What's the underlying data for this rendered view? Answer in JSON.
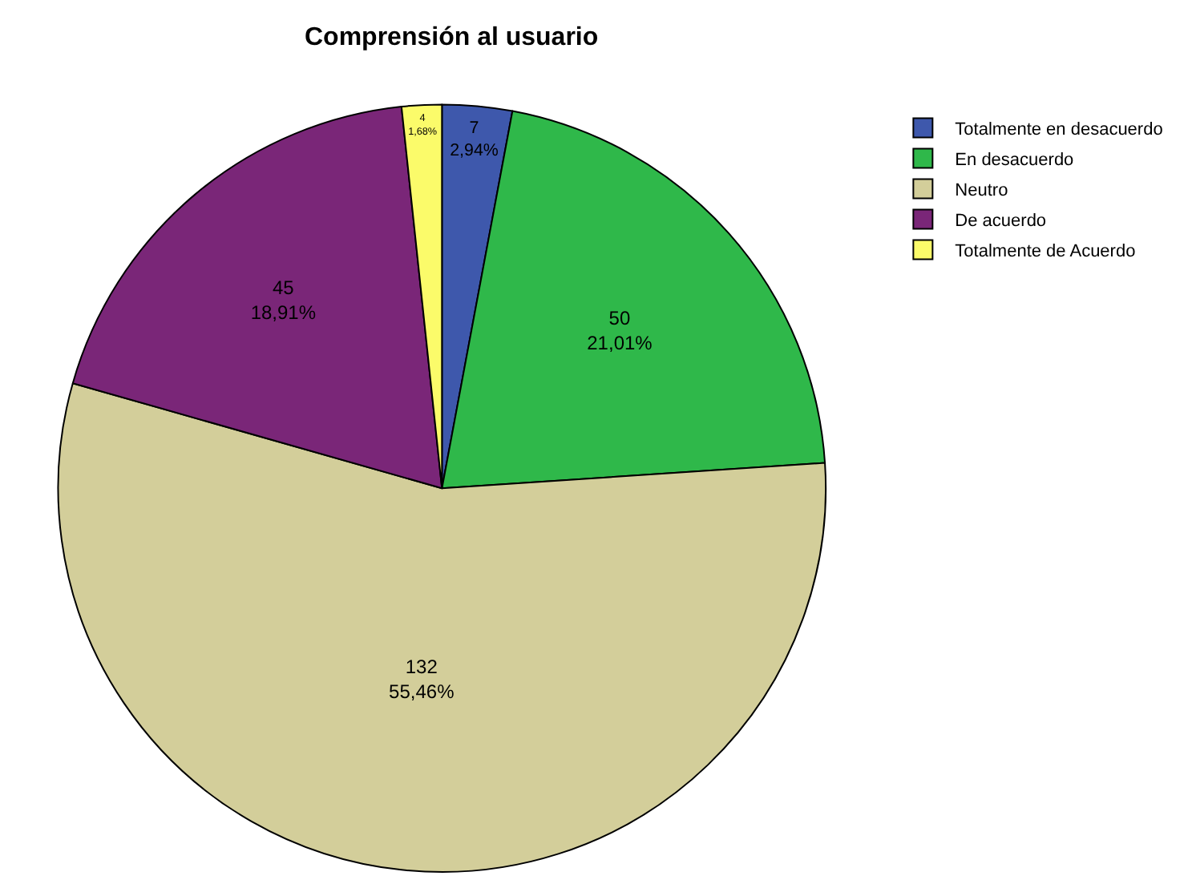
{
  "chart_data": {
    "type": "pie",
    "title": "Comprensión al usuario",
    "categories": [
      "Totalmente en desacuerdo",
      "En desacuerdo",
      "Neutro",
      "De acuerdo",
      "Totalmente de Acuerdo"
    ],
    "values": [
      7,
      50,
      132,
      45,
      4
    ],
    "value_labels": [
      "7\n2,94%",
      "50\n21,01%",
      "132\n55,46%",
      "45\n18,91%",
      "4\n1,68%"
    ],
    "colors": [
      "#3e58ac",
      "#2fb84a",
      "#d3ce9a",
      "#7a2678",
      "#fbfb6a"
    ],
    "legend": "top right"
  }
}
